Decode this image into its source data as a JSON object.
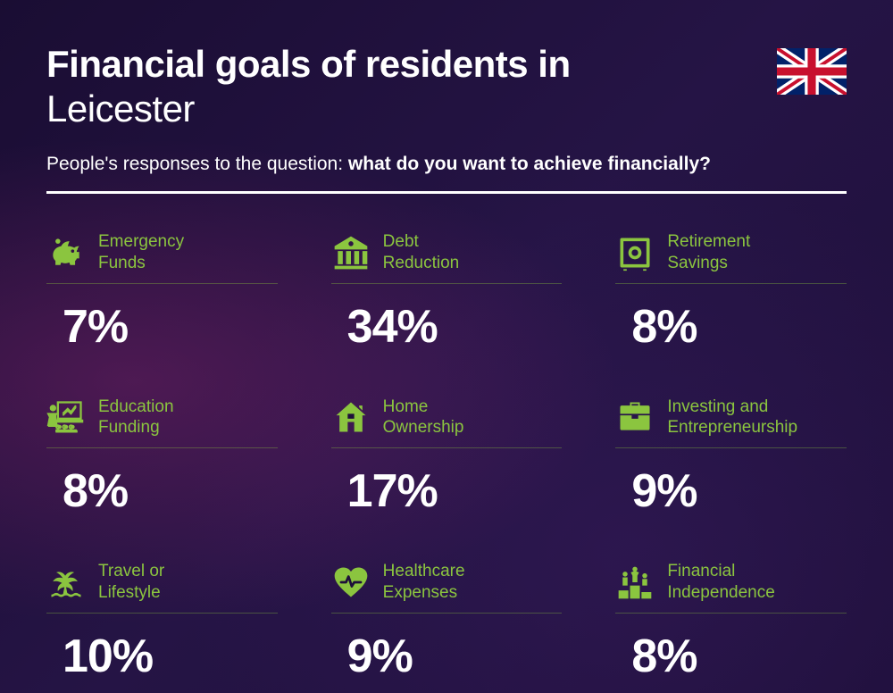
{
  "header": {
    "title_line1": "Financial goals of residents in",
    "title_line2": "Leicester",
    "subtitle_prefix": "People's responses to the question: ",
    "subtitle_bold": "what do you want to achieve financially?"
  },
  "colors": {
    "accent": "#8bc53f",
    "text": "#ffffff",
    "background_base": "#1e0f3a"
  },
  "items": [
    {
      "icon": "piggy-bank-icon",
      "label": "Emergency\nFunds",
      "value": "7%"
    },
    {
      "icon": "bank-icon",
      "label": "Debt\nReduction",
      "value": "34%"
    },
    {
      "icon": "safe-icon",
      "label": "Retirement\nSavings",
      "value": "8%"
    },
    {
      "icon": "presentation-icon",
      "label": "Education\nFunding",
      "value": "8%"
    },
    {
      "icon": "house-icon",
      "label": "Home\nOwnership",
      "value": "17%"
    },
    {
      "icon": "briefcase-icon",
      "label": "Investing and\nEntrepreneurship",
      "value": "9%"
    },
    {
      "icon": "palm-icon",
      "label": "Travel or\nLifestyle",
      "value": "10%"
    },
    {
      "icon": "heart-pulse-icon",
      "label": "Healthcare\nExpenses",
      "value": "9%"
    },
    {
      "icon": "podium-icon",
      "label": "Financial\nIndependence",
      "value": "8%"
    }
  ]
}
